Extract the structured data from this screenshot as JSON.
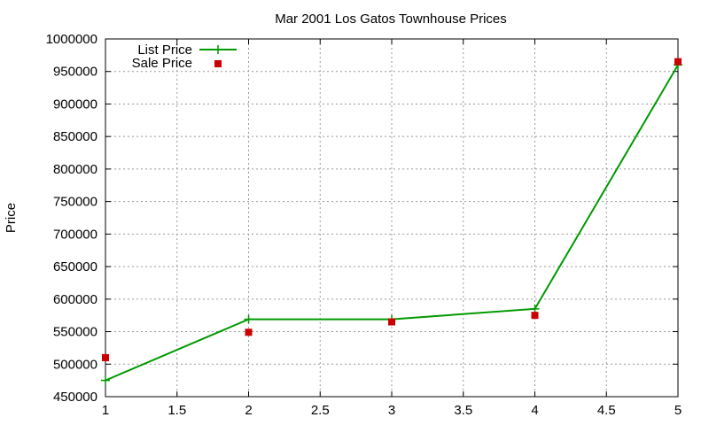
{
  "chart_data": {
    "type": "line",
    "title": "Mar 2001 Los Gatos Townhouse Prices",
    "xlabel": "",
    "ylabel": "Price",
    "xlim": [
      1,
      5
    ],
    "ylim": [
      450000,
      1000000
    ],
    "xticks": [
      "1",
      "1.5",
      "2",
      "2.5",
      "3",
      "3.5",
      "4",
      "4.5",
      "5"
    ],
    "yticks": [
      "450000",
      "500000",
      "550000",
      "600000",
      "650000",
      "700000",
      "750000",
      "800000",
      "850000",
      "900000",
      "950000",
      "1000000"
    ],
    "grid": true,
    "legend_position": "top-left",
    "series": [
      {
        "name": "List Price",
        "style": "lines-points",
        "color": "#009900",
        "x": [
          1,
          2,
          3,
          4,
          5
        ],
        "y": [
          475000,
          569000,
          569000,
          585000,
          960000
        ]
      },
      {
        "name": "Sale Price",
        "style": "points",
        "color": "#cc0000",
        "x": [
          1,
          2,
          3,
          4,
          5
        ],
        "y": [
          510000,
          549000,
          565000,
          575000,
          965000
        ]
      }
    ]
  }
}
